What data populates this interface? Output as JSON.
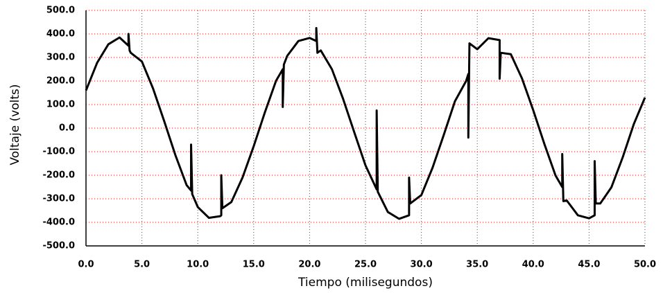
{
  "chart_data": {
    "type": "line",
    "x_label": "Tiempo (milisegundos)",
    "y_label": "Voltaje (volts)",
    "x": [
      0,
      1,
      2,
      3,
      3.8,
      3.8,
      3.9,
      4,
      5,
      6,
      7,
      8,
      9,
      9.4,
      9.4,
      9.5,
      10,
      11,
      12,
      12.1,
      12.1,
      12.2,
      13,
      14,
      15,
      16,
      17,
      17.6,
      17.6,
      17.7,
      18,
      19,
      20,
      20.6,
      20.6,
      20.7,
      21,
      22,
      23,
      24,
      25,
      26,
      26,
      26.1,
      27,
      28,
      28.9,
      28.9,
      29,
      30,
      31,
      32,
      33,
      34,
      34.2,
      34.2,
      34.3,
      35,
      36,
      37,
      37,
      37.1,
      38,
      39,
      40,
      41,
      42,
      42.6,
      42.6,
      42.7,
      43,
      44,
      45,
      45.5,
      45.5,
      45.6,
      46,
      47,
      48,
      49,
      50
    ],
    "series": [
      {
        "name": "Voltaje",
        "color": "#000000",
        "values": [
          160,
          278,
          356,
          385,
          350,
          400,
          330,
          320,
          283,
          168,
          29,
          -115,
          -242,
          -265,
          -70,
          -280,
          -335,
          -381,
          -374,
          -370,
          -200,
          -340,
          -314,
          -210,
          -77,
          67,
          201,
          250,
          90,
          270,
          307,
          370,
          383,
          370,
          425,
          320,
          330,
          250,
          124,
          -18,
          -158,
          -260,
          75,
          -270,
          -356,
          -385,
          -370,
          -210,
          -320,
          -284,
          -168,
          -29,
          114,
          200,
          230,
          -40,
          360,
          335,
          382,
          374,
          210,
          320,
          314,
          211,
          77,
          -67,
          -201,
          -250,
          -110,
          -310,
          -307,
          -370,
          -383,
          -370,
          -140,
          -320,
          -320,
          -251,
          -125,
          17,
          130
        ]
      }
    ],
    "xlim": [
      0,
      50
    ],
    "ylim": [
      -500,
      500
    ],
    "xticks": [
      {
        "value": 0,
        "label": "0.0"
      },
      {
        "value": 5,
        "label": "5.0"
      },
      {
        "value": 10,
        "label": "10.0"
      },
      {
        "value": 15,
        "label": "15.0"
      },
      {
        "value": 20,
        "label": "20.0"
      },
      {
        "value": 25,
        "label": "25.0"
      },
      {
        "value": 30,
        "label": "30.0"
      },
      {
        "value": 35,
        "label": "35.0"
      },
      {
        "value": 40,
        "label": "40.0"
      },
      {
        "value": 45,
        "label": "45.0"
      },
      {
        "value": 50,
        "label": "50.0"
      }
    ],
    "yticks": [
      {
        "value": 500,
        "label": "500.0"
      },
      {
        "value": 400,
        "label": "400.0"
      },
      {
        "value": 300,
        "label": "300.0"
      },
      {
        "value": 200,
        "label": "200.0"
      },
      {
        "value": 100,
        "label": "100.0"
      },
      {
        "value": 0,
        "label": "0.0"
      },
      {
        "value": -100,
        "label": "-100.0"
      },
      {
        "value": -200,
        "label": "-200.0"
      },
      {
        "value": -300,
        "label": "-300.0"
      },
      {
        "value": -400,
        "label": "-400.0"
      },
      {
        "value": -500,
        "label": "-500.0"
      }
    ],
    "grid": true,
    "grid_color": "#ff0000"
  }
}
